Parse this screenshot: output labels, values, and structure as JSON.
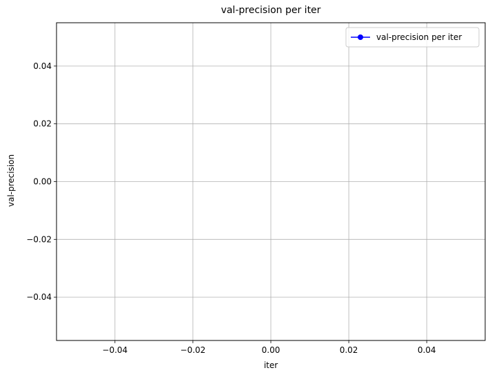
{
  "chart_data": {
    "type": "line",
    "title": "val-precision per iter",
    "xlabel": "iter",
    "ylabel": "val-precision",
    "xlim": [
      -0.055,
      0.055
    ],
    "ylim": [
      -0.055,
      0.055
    ],
    "x_ticks": [
      -0.04,
      -0.02,
      0.0,
      0.02,
      0.04
    ],
    "x_tick_labels": [
      "−0.04",
      "−0.02",
      "0.00",
      "0.02",
      "0.04"
    ],
    "y_ticks": [
      0.04,
      0.02,
      0.0,
      -0.02,
      -0.04
    ],
    "y_tick_labels": [
      "0.04",
      "0.02",
      "0.00",
      "−0.02",
      "−0.04"
    ],
    "grid": true,
    "legend_position": "top-right",
    "series": [
      {
        "name": "val-precision per iter",
        "color": "#0000ff",
        "marker": "circle",
        "x": [],
        "y": []
      }
    ]
  }
}
